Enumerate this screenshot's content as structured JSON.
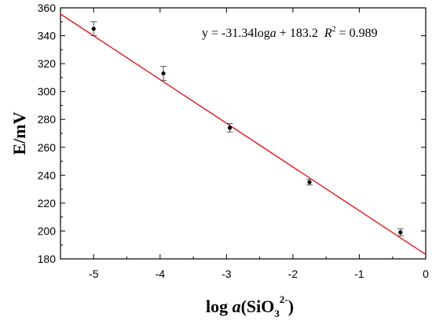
{
  "chart_data": {
    "type": "scatter",
    "ylabel": "E/mV",
    "xlabel": {
      "prefix": "log ",
      "italic": "a",
      "open": "(SiO",
      "sub": "3",
      "sup": "2-",
      "close": ")"
    },
    "equation": {
      "text": "y = -31.34log",
      "italic_var": "a",
      "rest": " + 183.2  ",
      "r_label": "R",
      "r_sup": "2",
      "r_value": " = 0.989"
    },
    "xlim": [
      -5.5,
      0
    ],
    "ylim": [
      180,
      360
    ],
    "xticks": [
      "-5",
      "-4",
      "-3",
      "-2",
      "-1",
      "0"
    ],
    "xtick_values": [
      -5,
      -4,
      -3,
      -2,
      -1,
      0
    ],
    "yticks": [
      "180",
      "200",
      "220",
      "240",
      "260",
      "280",
      "300",
      "320",
      "340",
      "360"
    ],
    "ytick_values": [
      180,
      200,
      220,
      240,
      260,
      280,
      300,
      320,
      340,
      360
    ],
    "points": [
      {
        "x": -5.0,
        "y": 345,
        "err": 5
      },
      {
        "x": -3.95,
        "y": 313,
        "err": 5
      },
      {
        "x": -2.95,
        "y": 274,
        "err": 3
      },
      {
        "x": -1.75,
        "y": 235,
        "err": 2
      },
      {
        "x": -0.38,
        "y": 199,
        "err": 2.5
      }
    ],
    "fit": {
      "slope": -31.34,
      "intercept": 183.2
    },
    "colors": {
      "fit_line": "#e8161b",
      "points": "#000000",
      "axis": "#000000"
    }
  }
}
